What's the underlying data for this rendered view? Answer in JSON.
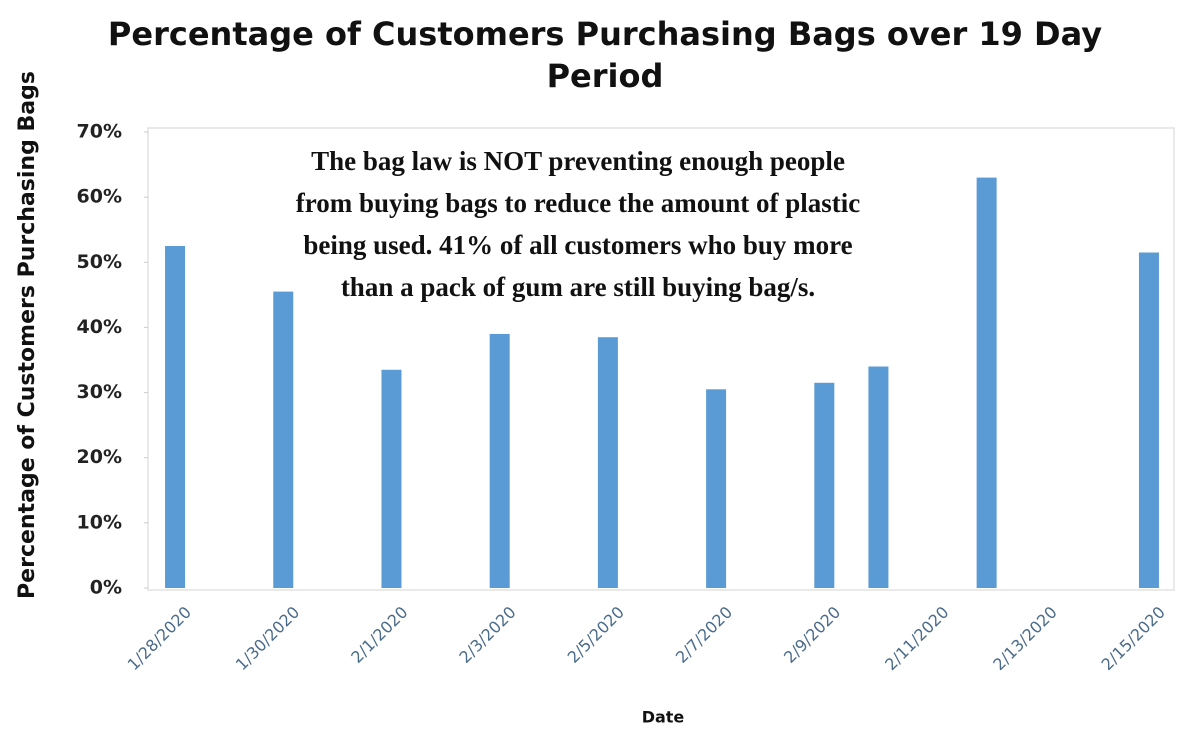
{
  "chart_data": {
    "type": "bar",
    "title": [
      "Percentage of Customers Purchasing Bags over 19 Day",
      "Period"
    ],
    "x_label": "Date",
    "y_label": "Percentage of Customers Purchasing Bags",
    "annotation": [
      "The bag law is  NOT preventing enough people",
      "from buying bags to reduce the amount of plastic",
      "being used. 41% of all customers who buy more",
      "than a pack of gum are still buying bag/s."
    ],
    "categories": [
      "1/28/2020",
      null,
      "1/30/2020",
      null,
      "2/1/2020",
      null,
      "2/3/2020",
      null,
      "2/5/2020",
      null,
      "2/7/2020",
      null,
      "2/9/2020",
      null,
      "2/11/2020",
      null,
      "2/13/2020",
      null,
      "2/15/2020"
    ],
    "values": [
      52.5,
      null,
      45.5,
      null,
      33.5,
      null,
      39,
      null,
      38.5,
      null,
      30.5,
      null,
      31.5,
      34,
      null,
      63,
      null,
      null,
      51.5
    ],
    "color": "#5b9bd5",
    "ylim": [
      0,
      70
    ],
    "yticks": [
      {
        "value": 0,
        "label": "0%"
      },
      {
        "value": 10,
        "label": "10%"
      },
      {
        "value": 20,
        "label": "20%"
      },
      {
        "value": 30,
        "label": "30%"
      },
      {
        "value": 40,
        "label": "40%"
      },
      {
        "value": 50,
        "label": "50%"
      },
      {
        "value": 60,
        "label": "60%"
      },
      {
        "value": 70,
        "label": "70%"
      }
    ],
    "grid": false
  }
}
